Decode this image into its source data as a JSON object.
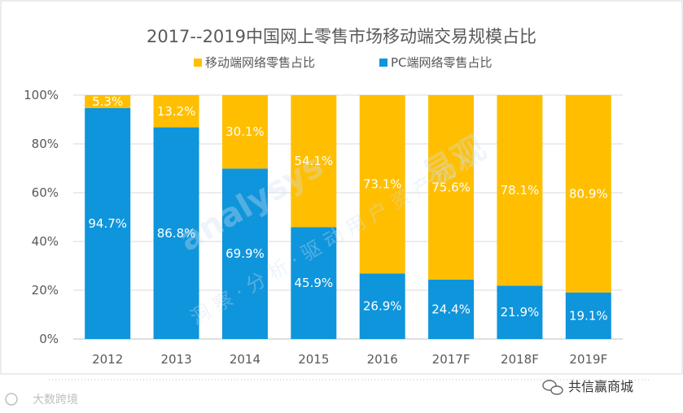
{
  "chart_data": {
    "type": "bar",
    "stacked": true,
    "title": "2017--2019中国网上零售市场移动端交易规模占比",
    "categories": [
      "2012",
      "2013",
      "2014",
      "2015",
      "2016",
      "2017F",
      "2018F",
      "2019F"
    ],
    "series": [
      {
        "name": "PC端网络零售占比",
        "color": "#0f95db",
        "values": [
          94.7,
          86.8,
          69.9,
          45.9,
          26.9,
          24.4,
          21.9,
          19.1
        ],
        "labels": [
          "94.7%",
          "86.8%",
          "69.9%",
          "45.9%",
          "26.9%",
          "24.4%",
          "21.9%",
          "19.1%"
        ]
      },
      {
        "name": "移动端网络零售占比",
        "color": "#ffbf00",
        "values": [
          5.3,
          13.2,
          30.1,
          54.1,
          73.1,
          75.6,
          78.1,
          80.9
        ],
        "labels": [
          "5.3%",
          "13.2%",
          "30.1%",
          "54.1%",
          "73.1%",
          "75.6%",
          "78.1%",
          "80.9%"
        ]
      }
    ],
    "legend_order": [
      1,
      0
    ],
    "ylim": [
      0,
      100
    ],
    "yticks": [
      "0%",
      "20%",
      "40%",
      "60%",
      "80%",
      "100%"
    ],
    "xlabel": "",
    "ylabel": "",
    "grid": true,
    "legend_position": "top"
  },
  "watermark": {
    "main": "易观",
    "latin": "analysys",
    "slogan": "洞 察 · 分 析 · 驱 动 用 户 资 产 成 长"
  },
  "footer": {
    "left": "大数跨境",
    "right": "共信赢商城"
  }
}
